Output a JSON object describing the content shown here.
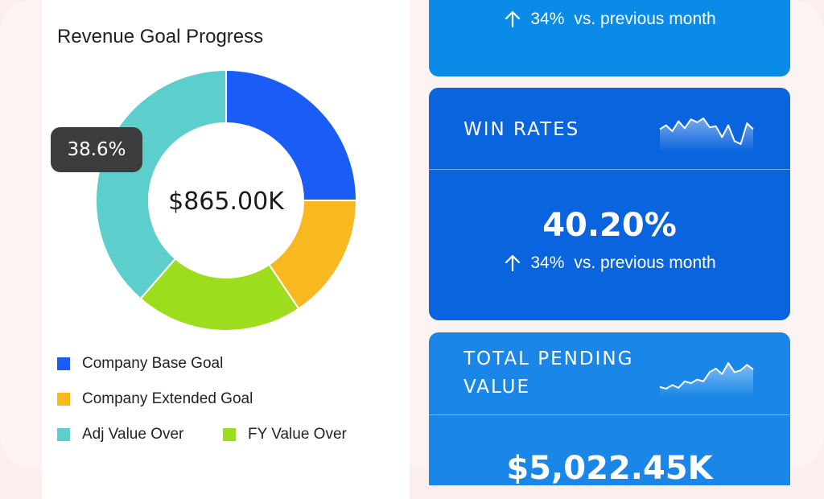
{
  "revenue_goal": {
    "title": "Revenue Goal Progress",
    "center_value": "$865.00K",
    "tooltip": "38.6%",
    "legend": [
      {
        "label": "Company Base Goal",
        "color": "#1a5cf6"
      },
      {
        "label": "Company Extended Goal",
        "color": "#f8b820"
      },
      {
        "label": "Adj Value Over",
        "color": "#5ccecc"
      },
      {
        "label": "FY Value Over",
        "color": "#9edc1e"
      }
    ],
    "chart_data": {
      "type": "pie",
      "donut": true,
      "categories": [
        "Company Base Goal",
        "Company Extended Goal",
        "FY Value Over",
        "Adj Value Over"
      ],
      "values": [
        25,
        15.6,
        20.8,
        38.6
      ],
      "colors": [
        "#1a5cf6",
        "#f8b820",
        "#9edc1e",
        "#5ccecc"
      ]
    }
  },
  "kpi_top": {
    "change_pct": "34%",
    "change_text": "vs. previous month"
  },
  "win_rates": {
    "label": "WIN RATES",
    "value": "40.20%",
    "change_pct": "34%",
    "change_text": "vs. previous month",
    "sparkline": [
      30,
      34,
      28,
      38,
      31,
      40,
      37,
      41,
      32,
      33,
      22,
      34,
      18,
      15,
      36,
      30
    ]
  },
  "total_pending": {
    "label_line1": "TOTAL PENDING",
    "label_line2": "VALUE",
    "value": "$5,022.45K",
    "sparkline": [
      14,
      12,
      16,
      13,
      20,
      18,
      22,
      20,
      30,
      34,
      28,
      40,
      30,
      32,
      38,
      33
    ]
  }
}
